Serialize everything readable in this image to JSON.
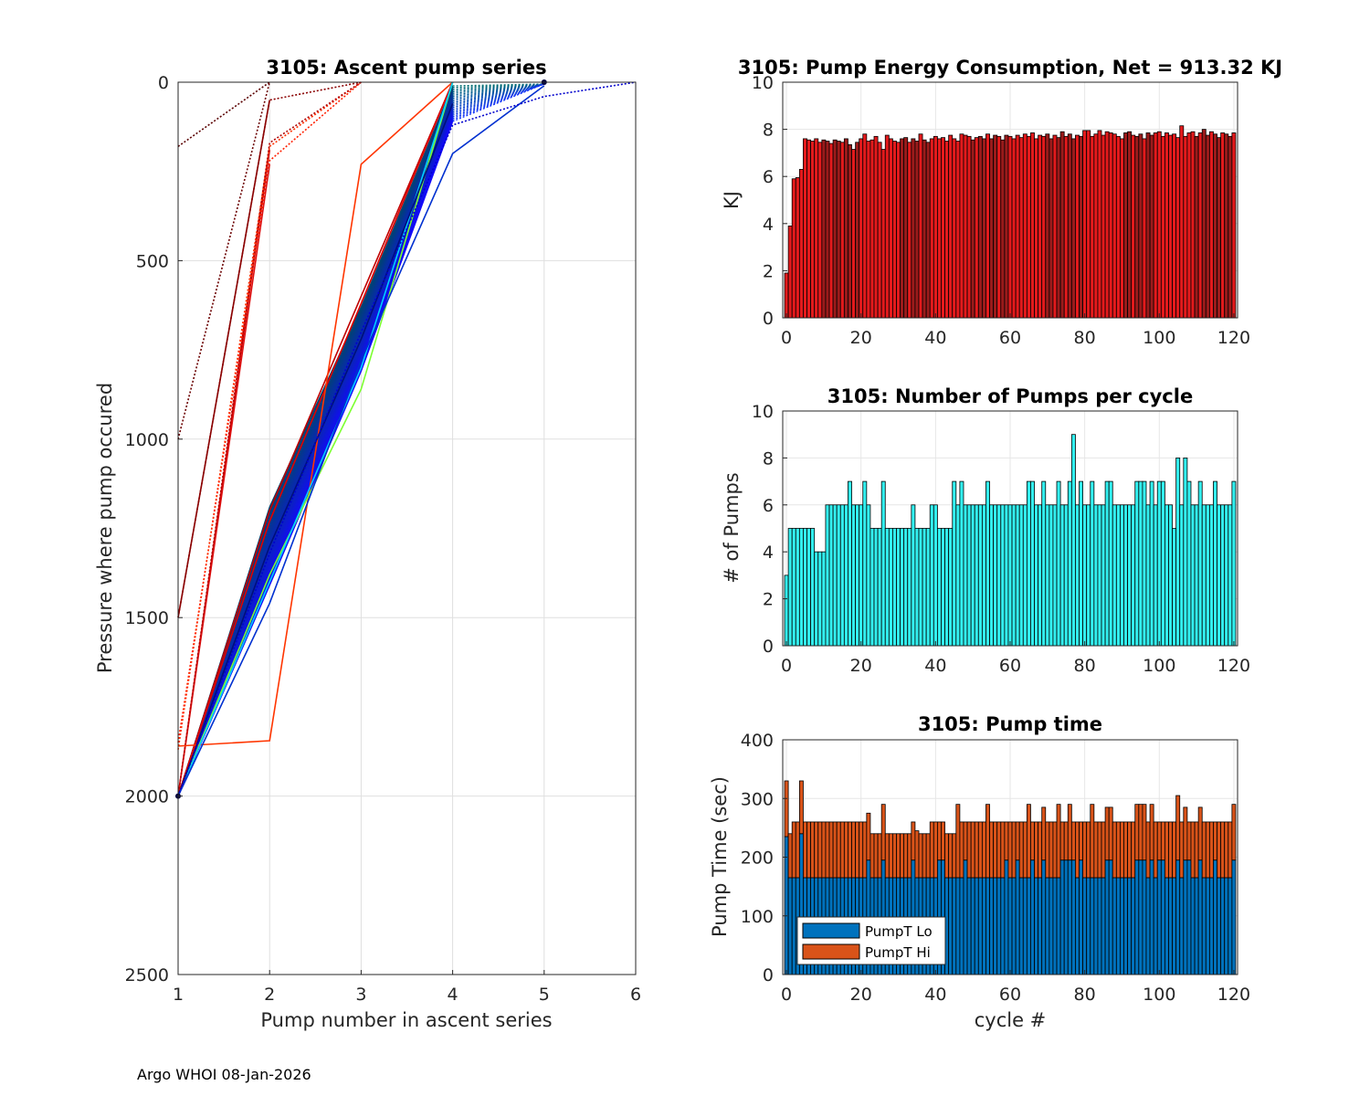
{
  "footer": "Argo WHOI 08-Jan-2026",
  "colors": {
    "energy_bar": "#e41a1c",
    "energy_bar_dark": "#9b1b1b",
    "pumps_bar": "#33f0f0",
    "pumpt_lo": "#0072bd",
    "pumpt_hi": "#d95319"
  },
  "chart_data": [
    {
      "id": "ascent",
      "type": "line",
      "title": "3105: Ascent pump series",
      "xlabel": "Pump number in ascent series",
      "ylabel": "Pressure where pump occured",
      "xlim": [
        1,
        6
      ],
      "ylim": [
        0,
        2500
      ],
      "y_reversed": true,
      "grid": true,
      "xticks": [
        "1",
        "2",
        "3",
        "4",
        "5",
        "6"
      ],
      "yticks": [
        "0",
        "500",
        "1000",
        "1500",
        "2000",
        "2500"
      ],
      "series_summary": "approx 120 profiles (one per cycle) colored red to blue by cycle; each starts near 2000 dbar at pump 1 and reaches the surface by pump 4-6",
      "series": [
        {
          "name": "early-1",
          "color": "#5a0000",
          "style": "dotted",
          "x": [
            1,
            2
          ],
          "y": [
            180,
            0
          ]
        },
        {
          "name": "early-2",
          "color": "#6b0000",
          "style": "dotted",
          "x": [
            1,
            2
          ],
          "y": [
            1000,
            0
          ]
        },
        {
          "name": "early-3",
          "color": "#8a0000",
          "style": "solid",
          "x": [
            1,
            2
          ],
          "y": [
            1500,
            50
          ]
        },
        {
          "name": "early-4",
          "color": "#8a0000",
          "style": "dotted",
          "x": [
            1,
            2,
            3
          ],
          "y": [
            1500,
            50,
            0
          ]
        },
        {
          "name": "early-5",
          "color": "#cc0000",
          "style": "solid",
          "x": [
            1,
            2
          ],
          "y": [
            2000,
            190
          ]
        },
        {
          "name": "early-6",
          "color": "#ff2000",
          "style": "dotted",
          "x": [
            1,
            2,
            3
          ],
          "y": [
            1850,
            220,
            0
          ]
        },
        {
          "name": "early-7",
          "color": "#ff3000",
          "style": "dotted",
          "x": [
            1,
            2,
            3
          ],
          "y": [
            1870,
            180,
            0
          ]
        },
        {
          "name": "early-8",
          "color": "#dd1010",
          "style": "solid",
          "x": [
            1,
            2
          ],
          "y": [
            2000,
            230
          ]
        },
        {
          "name": "early-9",
          "color": "#b00000",
          "style": "dotted",
          "x": [
            1,
            2,
            3
          ],
          "y": [
            2000,
            170,
            0
          ]
        },
        {
          "name": "mid-red-1",
          "color": "#c00000",
          "style": "solid",
          "x": [
            1,
            2,
            3,
            4
          ],
          "y": [
            2000,
            1200,
            600,
            0
          ]
        },
        {
          "name": "mid-red-2",
          "color": "#e00000",
          "style": "solid",
          "x": [
            1,
            2,
            3,
            4
          ],
          "y": [
            2000,
            1230,
            620,
            0
          ]
        },
        {
          "name": "orange",
          "color": "#ff3500",
          "style": "solid",
          "x": [
            1,
            2,
            3,
            4
          ],
          "y": [
            1860,
            1845,
            230,
            0
          ]
        },
        {
          "name": "green",
          "color": "#7cff30",
          "style": "solid",
          "x": [
            1,
            2,
            3,
            4
          ],
          "y": [
            2000,
            1380,
            860,
            0
          ]
        },
        {
          "name": "cyan",
          "color": "#00d0ff",
          "style": "solid",
          "x": [
            1,
            2,
            3,
            4
          ],
          "y": [
            2000,
            1400,
            800,
            0
          ]
        },
        {
          "name": "blue-bundle",
          "color": "#00107a",
          "style": "solid",
          "x": [
            1,
            2,
            3,
            4
          ],
          "y": [
            2000,
            1300,
            720,
            60
          ]
        },
        {
          "name": "blue-low",
          "color": "#0030d0",
          "style": "solid",
          "x": [
            1,
            2,
            3,
            4,
            5
          ],
          "y": [
            2000,
            1460,
            780,
            200,
            10
          ]
        },
        {
          "name": "blue-long",
          "color": "#0000cc",
          "style": "dotted",
          "x": [
            1,
            2,
            3,
            4,
            5,
            6
          ],
          "y": [
            2000,
            1320,
            700,
            120,
            40,
            0
          ]
        }
      ]
    },
    {
      "id": "energy",
      "type": "bar",
      "title": "3105: Pump Energy Consumption,  Net = 913.32 KJ",
      "xlabel": "",
      "ylabel": "KJ",
      "xlim": [
        -1,
        121
      ],
      "ylim": [
        0,
        10
      ],
      "xticks": [
        "0",
        "20",
        "40",
        "60",
        "80",
        "100",
        "120"
      ],
      "yticks": [
        "0",
        "2",
        "4",
        "6",
        "8",
        "10"
      ],
      "x_start": 0,
      "values": [
        1.9,
        3.9,
        5.9,
        5.95,
        6.3,
        7.6,
        7.55,
        7.5,
        7.6,
        7.45,
        7.55,
        7.5,
        7.4,
        7.55,
        7.5,
        7.45,
        7.6,
        7.35,
        7.15,
        7.45,
        7.6,
        7.8,
        7.5,
        7.55,
        7.7,
        7.45,
        7.15,
        7.75,
        7.6,
        7.5,
        7.45,
        7.6,
        7.65,
        7.45,
        7.6,
        7.5,
        7.8,
        7.55,
        7.45,
        7.6,
        7.7,
        7.6,
        7.65,
        7.5,
        7.75,
        7.6,
        7.5,
        7.8,
        7.75,
        7.7,
        7.55,
        7.65,
        7.7,
        7.6,
        7.8,
        7.6,
        7.75,
        7.7,
        7.55,
        7.75,
        7.7,
        7.6,
        7.75,
        7.65,
        7.8,
        7.7,
        7.85,
        7.6,
        7.75,
        7.7,
        7.8,
        7.6,
        7.75,
        7.65,
        7.9,
        7.7,
        7.8,
        7.6,
        7.75,
        7.7,
        7.95,
        7.95,
        7.7,
        7.8,
        7.95,
        7.75,
        7.9,
        7.85,
        7.8,
        7.7,
        7.6,
        7.85,
        7.9,
        7.75,
        7.7,
        7.8,
        7.6,
        7.85,
        7.75,
        7.85,
        7.9,
        7.7,
        7.85,
        7.75,
        7.8,
        7.65,
        8.15,
        7.7,
        7.85,
        7.9,
        7.7,
        7.85,
        8.0,
        7.75,
        7.9,
        7.8,
        7.65,
        7.85,
        7.8,
        7.7,
        7.85
      ]
    },
    {
      "id": "pumps",
      "type": "bar",
      "title": "3105: Number of Pumps per cycle",
      "xlabel": "",
      "ylabel": "# of Pumps",
      "xlim": [
        -1,
        121
      ],
      "ylim": [
        0,
        10
      ],
      "xticks": [
        "0",
        "20",
        "40",
        "60",
        "80",
        "100",
        "120"
      ],
      "yticks": [
        "0",
        "2",
        "4",
        "6",
        "8",
        "10"
      ],
      "x_start": 0,
      "values": [
        3,
        5,
        5,
        5,
        5,
        5,
        5,
        5,
        4,
        4,
        4,
        6,
        6,
        6,
        6,
        6,
        6,
        7,
        6,
        6,
        6,
        7,
        6,
        5,
        5,
        5,
        7,
        5,
        5,
        5,
        5,
        5,
        5,
        5,
        6,
        5,
        5,
        5,
        5,
        6,
        6,
        5,
        5,
        5,
        5,
        7,
        6,
        7,
        6,
        6,
        6,
        6,
        6,
        6,
        7,
        6,
        6,
        6,
        6,
        6,
        6,
        6,
        6,
        6,
        6,
        7,
        7,
        6,
        6,
        7,
        6,
        6,
        6,
        7,
        6,
        6,
        7,
        9,
        6,
        7,
        6,
        6,
        7,
        6,
        6,
        6,
        7,
        7,
        6,
        6,
        6,
        6,
        6,
        6,
        7,
        7,
        7,
        6,
        7,
        6,
        7,
        7,
        6,
        6,
        5,
        8,
        6,
        8,
        7,
        6,
        6,
        7,
        6,
        6,
        6,
        7,
        6,
        6,
        6,
        6,
        7
      ]
    },
    {
      "id": "pumptime",
      "type": "bar",
      "stacked": true,
      "title": "3105: Pump time",
      "xlabel": "cycle #",
      "ylabel": "Pump Time (sec)",
      "xlim": [
        -1,
        121
      ],
      "ylim": [
        0,
        400
      ],
      "xticks": [
        "0",
        "20",
        "40",
        "60",
        "80",
        "100",
        "120"
      ],
      "yticks": [
        "0",
        "100",
        "200",
        "300",
        "400"
      ],
      "legend": {
        "position": "bottom-left",
        "entries": [
          "PumpT Lo",
          "PumpT Hi"
        ]
      },
      "x_start": 0,
      "series": [
        {
          "name": "PumpT Lo",
          "values": [
            235,
            165,
            165,
            165,
            240,
            165,
            165,
            165,
            165,
            165,
            165,
            165,
            165,
            165,
            165,
            165,
            165,
            165,
            165,
            165,
            165,
            165,
            195,
            165,
            165,
            165,
            195,
            165,
            165,
            165,
            165,
            165,
            165,
            165,
            195,
            165,
            165,
            165,
            165,
            165,
            165,
            195,
            195,
            165,
            165,
            165,
            165,
            165,
            195,
            165,
            165,
            165,
            165,
            165,
            165,
            165,
            165,
            165,
            165,
            195,
            165,
            165,
            195,
            165,
            165,
            165,
            195,
            165,
            165,
            195,
            165,
            165,
            165,
            165,
            195,
            195,
            195,
            195,
            165,
            195,
            165,
            165,
            165,
            165,
            165,
            165,
            195,
            195,
            165,
            165,
            165,
            165,
            165,
            165,
            195,
            195,
            195,
            165,
            195,
            165,
            195,
            195,
            165,
            165,
            165,
            195,
            165,
            195,
            195,
            165,
            165,
            195,
            165,
            165,
            165,
            195,
            165,
            165,
            165,
            165,
            195
          ]
        },
        {
          "name": "PumpT Hi",
          "values": [
            95,
            75,
            95,
            95,
            90,
            95,
            95,
            95,
            95,
            95,
            95,
            95,
            95,
            95,
            95,
            95,
            95,
            95,
            95,
            95,
            95,
            95,
            80,
            75,
            75,
            75,
            95,
            75,
            75,
            75,
            75,
            75,
            75,
            75,
            65,
            80,
            75,
            75,
            75,
            95,
            95,
            65,
            65,
            75,
            75,
            75,
            125,
            95,
            65,
            95,
            95,
            95,
            95,
            95,
            125,
            95,
            95,
            95,
            95,
            65,
            95,
            95,
            65,
            95,
            95,
            125,
            65,
            95,
            95,
            90,
            95,
            95,
            95,
            125,
            65,
            65,
            95,
            65,
            95,
            65,
            95,
            95,
            125,
            95,
            95,
            95,
            90,
            90,
            95,
            95,
            95,
            95,
            95,
            95,
            95,
            95,
            95,
            95,
            95,
            95,
            65,
            65,
            95,
            95,
            95,
            110,
            95,
            90,
            65,
            95,
            95,
            90,
            95,
            95,
            95,
            65,
            95,
            95,
            95,
            95,
            95
          ]
        }
      ]
    }
  ]
}
